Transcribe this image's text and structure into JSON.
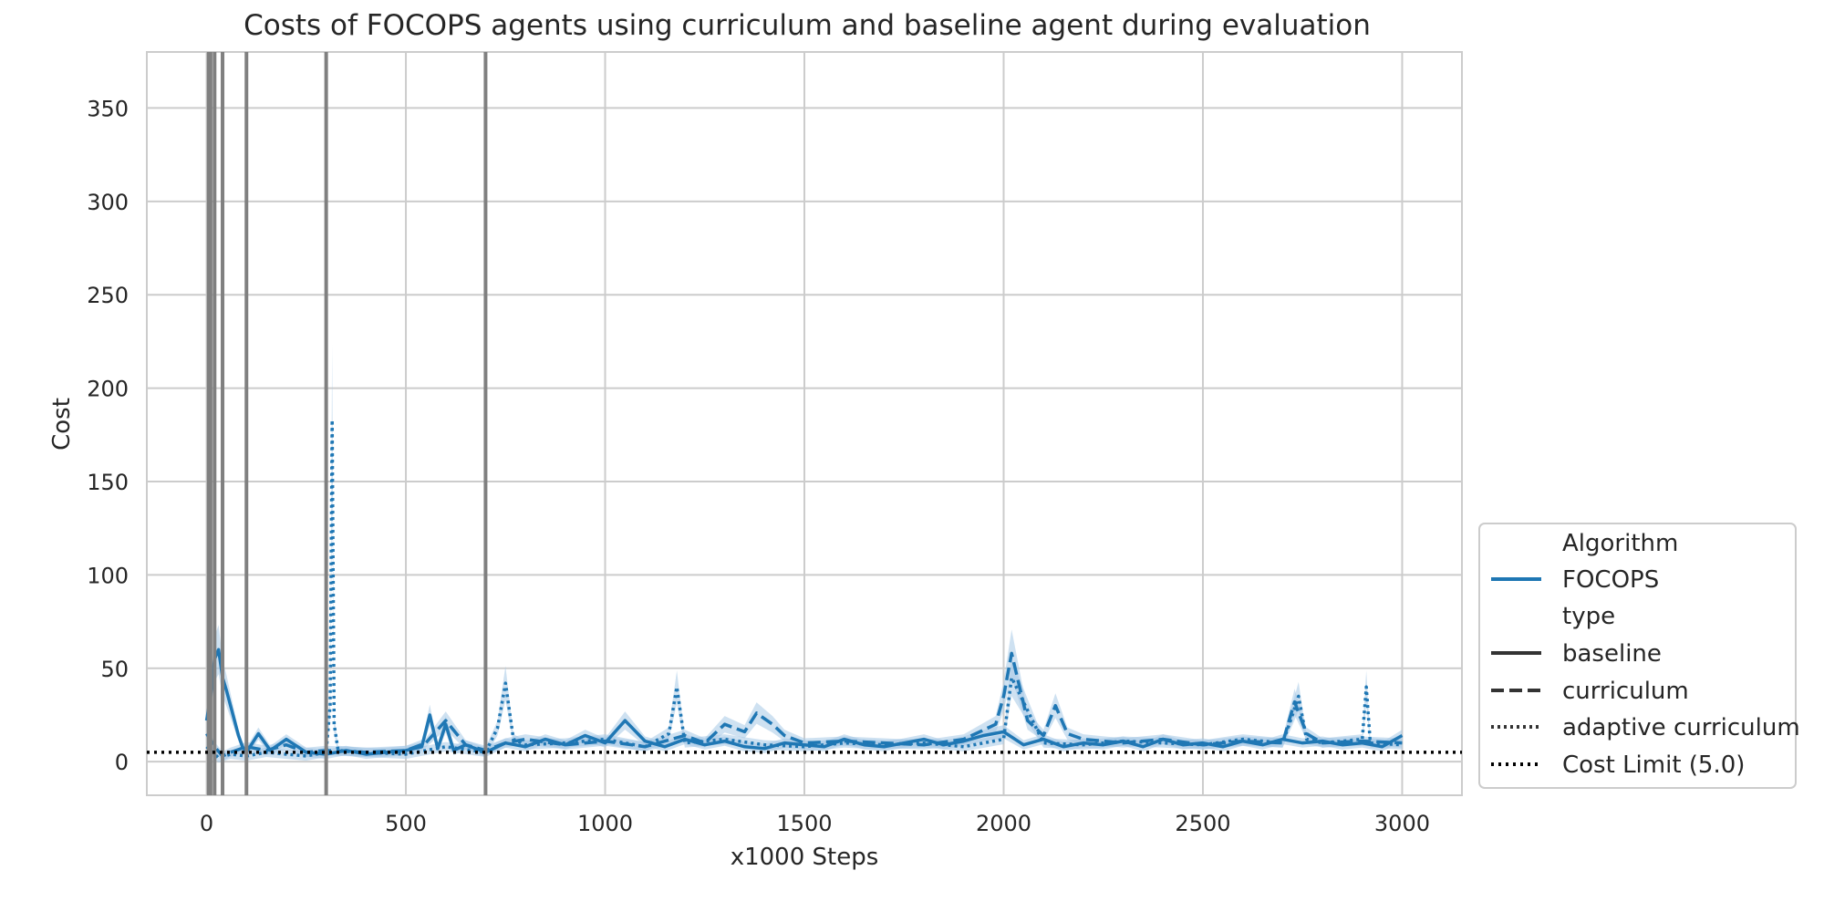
{
  "chart_data": {
    "type": "line",
    "title": "Costs of FOCOPS agents using curriculum and baseline agent during evaluation",
    "xlabel": "x1000 Steps",
    "ylabel": "Cost",
    "xlim": [
      -150,
      3150
    ],
    "ylim": [
      -18,
      380
    ],
    "xticks": [
      0,
      500,
      1000,
      1500,
      2000,
      2500,
      3000
    ],
    "yticks": [
      0,
      50,
      100,
      150,
      200,
      250,
      300,
      350
    ],
    "grid": true,
    "legend_position": "lower-right-outside",
    "legend": {
      "algorithm_header": "Algorithm",
      "algorithm_entry": "FOCOPS",
      "type_header": "type",
      "entries": [
        "baseline",
        "curriculum",
        "adaptive curriculum",
        "Cost Limit (5.0)"
      ]
    },
    "colors": {
      "series": "#1f77b4",
      "band": "#a6c8e5",
      "vlines": "#808080",
      "limit": "#000000"
    },
    "vertical_lines": [
      5,
      10,
      20,
      40,
      100,
      300,
      700
    ],
    "cost_limit": 5.0,
    "series": [
      {
        "name": "baseline",
        "linestyle": "solid",
        "x": [
          0,
          10,
          20,
          30,
          40,
          50,
          60,
          70,
          80,
          90,
          100,
          130,
          160,
          200,
          250,
          300,
          350,
          400,
          450,
          500,
          540,
          560,
          580,
          600,
          620,
          650,
          700,
          750,
          800,
          850,
          900,
          950,
          1000,
          1050,
          1100,
          1150,
          1200,
          1250,
          1300,
          1350,
          1400,
          1450,
          1500,
          1550,
          1600,
          1650,
          1700,
          1750,
          1800,
          1850,
          1900,
          1950,
          2000,
          2050,
          2100,
          2150,
          2200,
          2250,
          2300,
          2350,
          2400,
          2450,
          2500,
          2550,
          2600,
          2650,
          2700,
          2750,
          2800,
          2850,
          2900,
          2950,
          3000
        ],
        "y": [
          22,
          35,
          55,
          60,
          45,
          38,
          30,
          22,
          14,
          8,
          5,
          15,
          6,
          12,
          5,
          4,
          6,
          4,
          5,
          6,
          8,
          25,
          7,
          20,
          6,
          9,
          5,
          10,
          8,
          12,
          9,
          14,
          10,
          22,
          11,
          8,
          12,
          9,
          11,
          8,
          7,
          10,
          9,
          8,
          12,
          9,
          8,
          10,
          12,
          9,
          11,
          14,
          16,
          9,
          12,
          8,
          10,
          9,
          11,
          8,
          12,
          9,
          10,
          8,
          11,
          9,
          12,
          10,
          11,
          9,
          10,
          8,
          14
        ]
      },
      {
        "name": "curriculum",
        "linestyle": "dashed",
        "x": [
          0,
          20,
          40,
          60,
          100,
          150,
          200,
          250,
          300,
          400,
          500,
          550,
          600,
          650,
          700,
          750,
          800,
          900,
          1000,
          1100,
          1200,
          1250,
          1300,
          1350,
          1380,
          1420,
          1450,
          1500,
          1600,
          1700,
          1800,
          1900,
          1980,
          2000,
          2020,
          2040,
          2060,
          2100,
          2130,
          2160,
          2200,
          2300,
          2400,
          2500,
          2600,
          2700,
          2730,
          2760,
          2800,
          2900,
          3000
        ],
        "y": [
          15,
          8,
          3,
          5,
          8,
          6,
          9,
          5,
          6,
          5,
          6,
          10,
          22,
          9,
          6,
          10,
          12,
          9,
          11,
          8,
          14,
          10,
          20,
          16,
          26,
          20,
          14,
          10,
          11,
          10,
          9,
          12,
          20,
          35,
          58,
          40,
          22,
          14,
          30,
          15,
          12,
          10,
          12,
          9,
          11,
          10,
          32,
          15,
          10,
          11,
          10
        ]
      },
      {
        "name": "adaptive curriculum",
        "linestyle": "dotted",
        "x": [
          0,
          30,
          60,
          100,
          150,
          200,
          250,
          300,
          310,
          315,
          320,
          330,
          400,
          500,
          600,
          700,
          730,
          750,
          770,
          800,
          900,
          1000,
          1100,
          1160,
          1180,
          1200,
          1300,
          1400,
          1500,
          1600,
          1700,
          1800,
          1900,
          2000,
          2020,
          2100,
          2200,
          2300,
          2400,
          2500,
          2600,
          2700,
          2720,
          2740,
          2760,
          2800,
          2900,
          2910,
          2920,
          3000
        ],
        "y": [
          8,
          2,
          4,
          3,
          5,
          4,
          3,
          5,
          30,
          183,
          20,
          6,
          5,
          4,
          8,
          5,
          18,
          42,
          12,
          9,
          10,
          12,
          8,
          15,
          40,
          10,
          12,
          9,
          8,
          10,
          9,
          10,
          8,
          12,
          45,
          10,
          9,
          11,
          10,
          9,
          12,
          10,
          22,
          35,
          12,
          10,
          12,
          40,
          10,
          9
        ]
      }
    ]
  }
}
